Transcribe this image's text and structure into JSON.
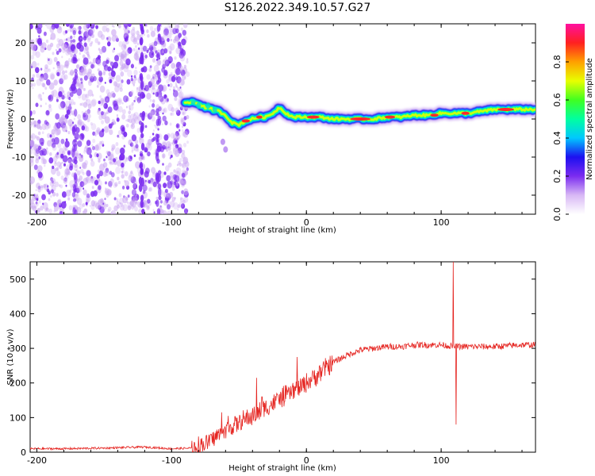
{
  "title": "S126.2022.349.10.57.G27",
  "colors": {
    "line": "#e52521",
    "ridge_core": "#ff2a2a",
    "noise": "#7b2cf0"
  },
  "chart_data": [
    {
      "type": "heatmap",
      "xlabel": "Height of straight line (km)",
      "ylabel": "Frequency (Hz)",
      "xlim": [
        -205,
        170
      ],
      "ylim": [
        -25,
        25
      ],
      "x_ticks": [
        -200,
        -100,
        0,
        100
      ],
      "y_ticks": [
        20,
        10,
        0,
        -10,
        -20
      ],
      "colorbar": {
        "label": "Normalized spectral amplitude",
        "range": [
          0,
          1
        ],
        "ticks": [
          "0.0",
          "0.2",
          "0.4",
          "0.6",
          "0.8"
        ],
        "colormap": [
          "#ffffff",
          "#d8b8f5",
          "#7b2cf0",
          "#1d10f0",
          "#00c8ff",
          "#00ffa0",
          "#40ff20",
          "#e8ff00",
          "#ffa000",
          "#ff2020",
          "#ff10a0"
        ]
      },
      "ridge_frequency": {
        "x": [
          -90,
          -85,
          -80,
          -75,
          -70,
          -65,
          -60,
          -55,
          -50,
          -45,
          -40,
          -35,
          -30,
          -25,
          -20,
          -15,
          -10,
          -5,
          0,
          10,
          20,
          30,
          40,
          50,
          60,
          70,
          80,
          90,
          100,
          105,
          110,
          120,
          130,
          140,
          150,
          160,
          170
        ],
        "y": [
          4.0,
          4.5,
          4.0,
          3.0,
          2.5,
          2.0,
          1.0,
          -1.0,
          -1.5,
          -0.5,
          0.0,
          0.5,
          0.5,
          1.5,
          3.0,
          1.5,
          0.5,
          0.5,
          0.5,
          0.5,
          0.0,
          0.0,
          0.0,
          0.0,
          0.5,
          0.5,
          1.0,
          1.0,
          1.5,
          1.5,
          1.5,
          1.5,
          2.0,
          2.5,
          2.5,
          2.5,
          2.5
        ]
      },
      "noise_region_x": [
        -205,
        -88
      ]
    },
    {
      "type": "line",
      "xlabel": "Height of straight line (km)",
      "ylabel": "SNR (10 * v/v)",
      "xlim": [
        -205,
        170
      ],
      "ylim": [
        0,
        550
      ],
      "x_ticks": [
        -200,
        -100,
        0,
        100
      ],
      "y_ticks": [
        0,
        100,
        200,
        300,
        400,
        500
      ],
      "trend": {
        "x": [
          -205,
          -180,
          -150,
          -120,
          -100,
          -85,
          -75,
          -65,
          -55,
          -45,
          -35,
          -25,
          -15,
          -5,
          0,
          10,
          20,
          30,
          40,
          50,
          60,
          70,
          80,
          90,
          100,
          110,
          120,
          140,
          160,
          170
        ],
        "y": [
          10,
          10,
          12,
          15,
          10,
          12,
          25,
          50,
          75,
          95,
          115,
          140,
          165,
          185,
          200,
          230,
          260,
          280,
          295,
          300,
          305,
          305,
          310,
          310,
          310,
          305,
          305,
          305,
          310,
          310
        ]
      },
      "spikes": [
        {
          "x": -63,
          "y": 115
        },
        {
          "x": -58,
          "y": 105
        },
        {
          "x": -37,
          "y": 215
        },
        {
          "x": -33,
          "y": 160
        },
        {
          "x": -22,
          "y": 170
        },
        {
          "x": -10,
          "y": 200
        },
        {
          "x": -7,
          "y": 275
        },
        {
          "x": 10,
          "y": 250
        },
        {
          "x": 109,
          "y": 550
        },
        {
          "x": 111,
          "y": 80
        }
      ]
    }
  ]
}
